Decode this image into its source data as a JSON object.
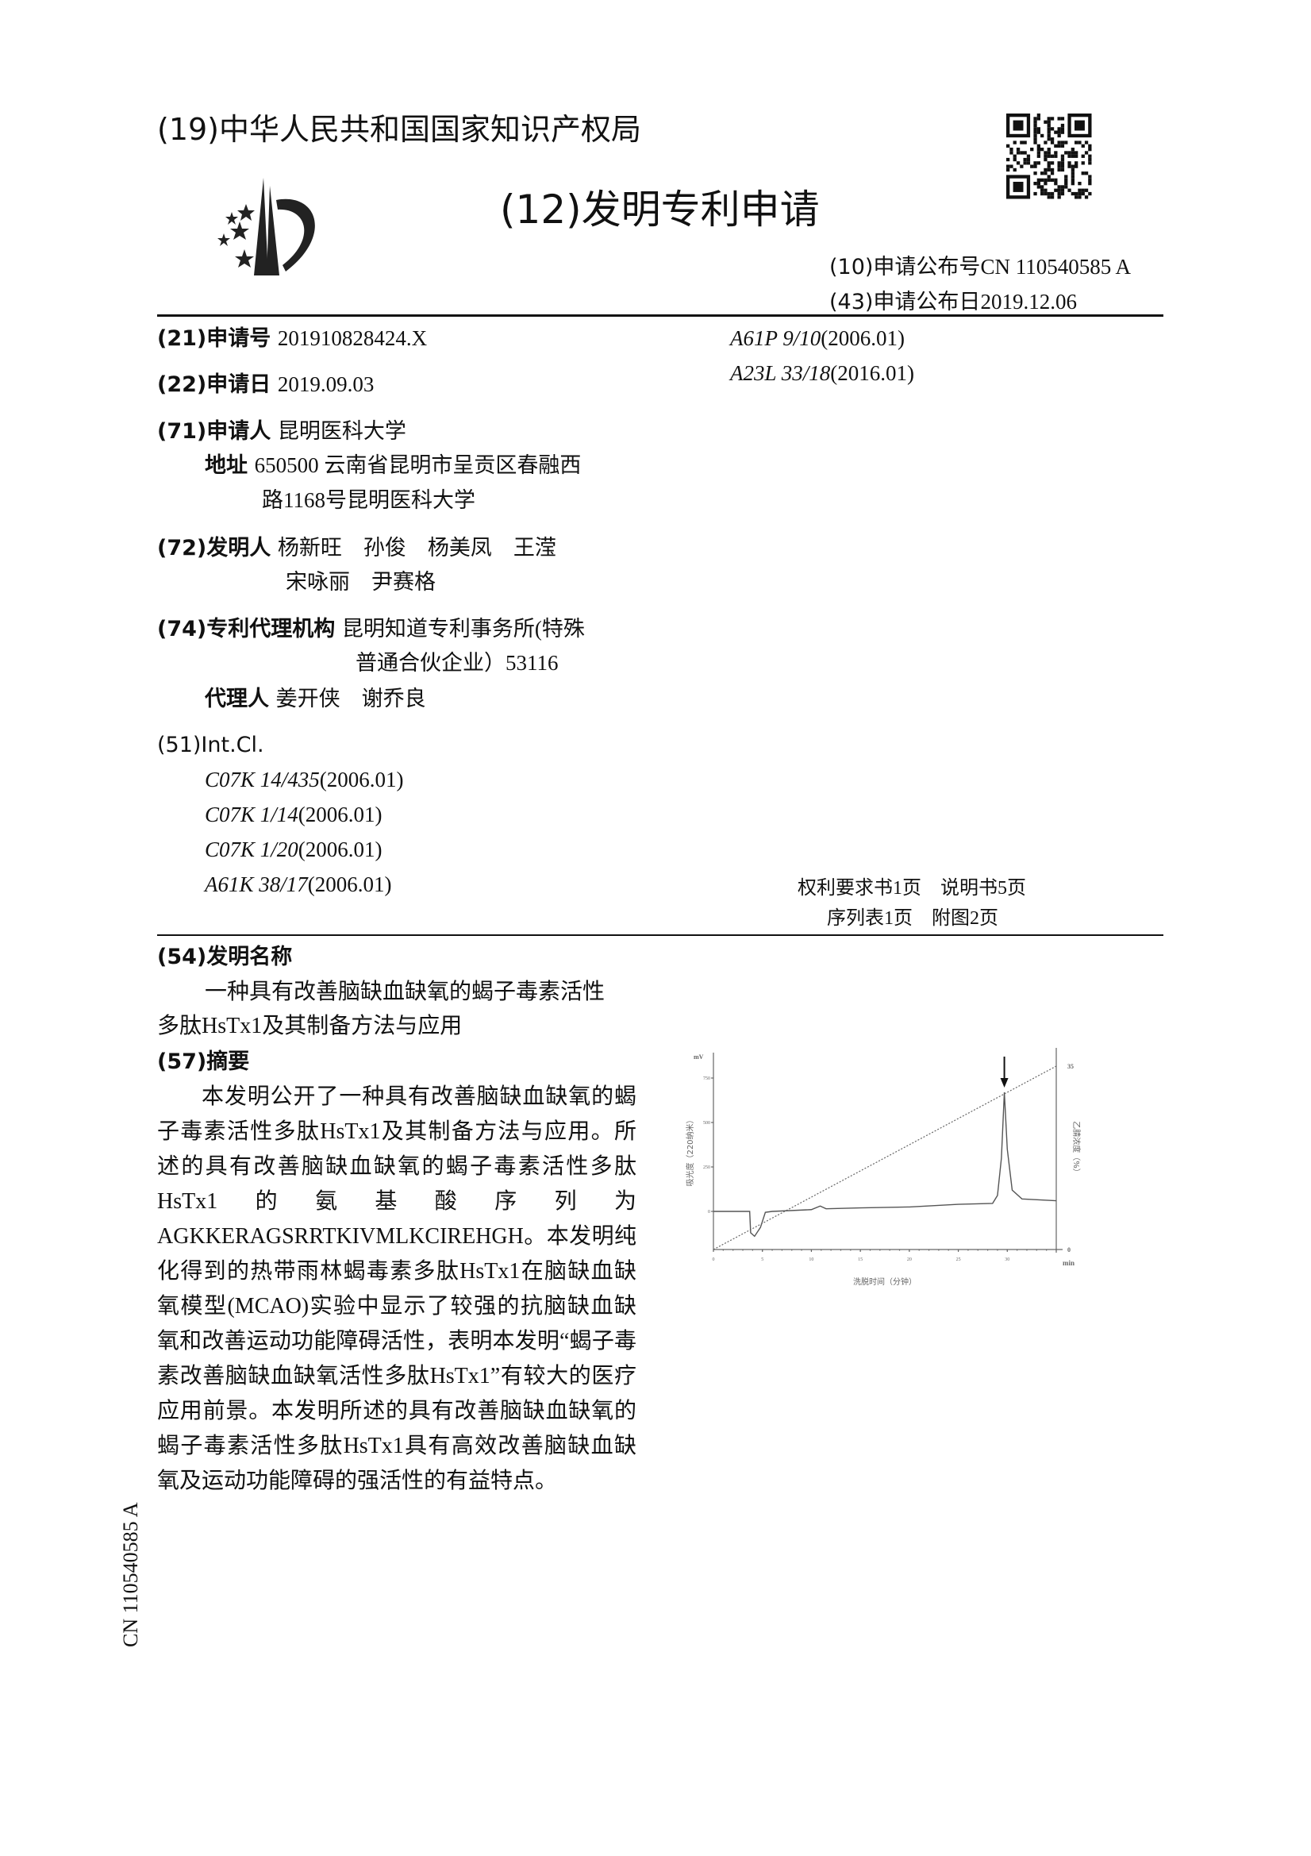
{
  "header": {
    "office": "(19)中华人民共和国国家知识产权局",
    "doc_type": "(12)发明专利申请",
    "pub_no_label": "(10)申请公布号",
    "pub_no": "CN 110540585 A",
    "pub_date_label": "(43)申请公布日",
    "pub_date": "2019.12.06"
  },
  "biblio": {
    "app_no_label": "(21)申请号",
    "app_no": "201910828424.X",
    "app_date_label": "(22)申请日",
    "app_date": "2019.09.03",
    "applicant_label": "(71)申请人",
    "applicant": "昆明医科大学",
    "address_label": "地址",
    "address_line1": "650500 云南省昆明市呈贡区春融西",
    "address_line2": "路1168号昆明医科大学",
    "inventor_label": "(72)发明人",
    "inventors_line1": "杨新旺　孙俊　杨美凤　王滢",
    "inventors_line2": "宋咏丽　尹赛格",
    "agency_label": "(74)专利代理机构",
    "agency_line1": "昆明知道专利事务所(特殊",
    "agency_line2": "普通合伙企业）53116",
    "agent_label": "代理人",
    "agents": "姜开侠　谢乔良",
    "intcl_label": "(51)Int.Cl.",
    "intcl": [
      {
        "code": "C07K 14/435",
        "ver": "(2006.01)"
      },
      {
        "code": "C07K 1/14",
        "ver": "(2006.01)"
      },
      {
        "code": "C07K 1/20",
        "ver": "(2006.01)"
      },
      {
        "code": "A61K 38/17",
        "ver": "(2006.01)"
      }
    ],
    "intcl_right": [
      {
        "code": "A61P 9/10",
        "ver": "(2006.01)"
      },
      {
        "code": "A23L 33/18",
        "ver": "(2016.01)"
      }
    ],
    "pages_line1": "权利要求书1页　说明书5页",
    "pages_line2": "序列表1页　附图2页"
  },
  "title_section": {
    "label": "(54)发明名称",
    "line1": "一种具有改善脑缺血缺氧的蝎子毒素活性",
    "line2": "多肽HsTx1及其制备方法与应用"
  },
  "abstract": {
    "label": "(57)摘要",
    "text": "本发明公开了一种具有改善脑缺血缺氧的蝎子毒素活性多肽HsTx1及其制备方法与应用。所述的具有改善脑缺血缺氧的蝎子毒素活性多肽HsTx1的氨基酸序列为AGKKERAGSRRTKIVMLKCIREHGH。本发明纯化得到的热带雨林蝎毒素多肽HsTx1在脑缺血缺氧模型(MCAO)实验中显示了较强的抗脑缺血缺氧和改善运动功能障碍活性，表明本发明“蝎子毒素改善脑缺血缺氧活性多肽HsTx1”有较大的医疗应用前景。本发明所述的具有改善脑缺血缺氧的蝎子毒素活性多肽HsTx1具有高效改善脑缺血缺氧及运动功能障碍的强活性的有益特点。"
  },
  "side_label": "CN 110540585 A",
  "chart_data": {
    "type": "line",
    "xlabel": "洗脱时间（分钟）",
    "x_unit": "min",
    "ylabel": "吸光度（220纳米）",
    "y_unit": "mV",
    "y2label": "乙腈浓度（%）",
    "xlim": [
      0,
      35
    ],
    "ylim": [
      -214,
      900
    ],
    "y2lim": [
      0,
      35
    ],
    "xticks": [
      0,
      5,
      10,
      15,
      20,
      25,
      30
    ],
    "yticks": [
      0,
      250,
      500,
      750
    ],
    "y2ticks": [
      0,
      35
    ],
    "grid": false,
    "series": [
      {
        "style": "solid",
        "axis": "left",
        "x": [
          0,
          3.7,
          3.8,
          4.2,
          4.8,
          5.3,
          6,
          10,
          10.9,
          11.5,
          15,
          20,
          25,
          28.5,
          29.0,
          29.4,
          29.7,
          30.0,
          30.5,
          31.5,
          35
        ],
        "y": [
          0,
          0,
          -120,
          -140,
          -90,
          -5,
          0,
          10,
          30,
          15,
          20,
          25,
          40,
          45,
          90,
          300,
          670,
          350,
          120,
          70,
          60
        ]
      },
      {
        "style": "dashed",
        "axis": "right",
        "x": [
          0,
          35
        ],
        "y": [
          0,
          35
        ]
      }
    ],
    "annotation": {
      "type": "arrow",
      "x": 29.7
    },
    "colors": {
      "trace": "#555555",
      "gradient": "#666666"
    }
  }
}
